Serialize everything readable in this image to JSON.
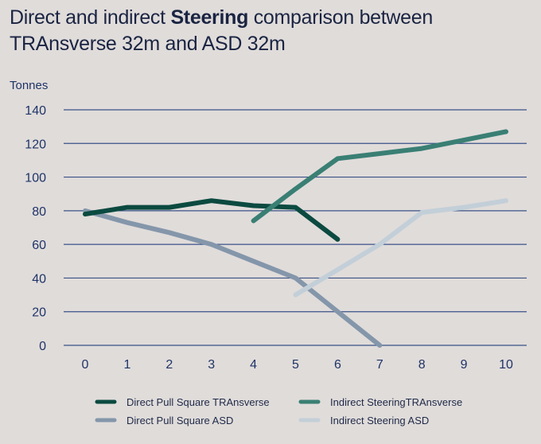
{
  "title": {
    "prefix": "Direct and indirect ",
    "bold": "Steering",
    "suffix": " comparison between TRAnsverse 32m and ASD 32m"
  },
  "chart_data": {
    "type": "line",
    "title": "Direct and indirect Steering comparison between TRAnsverse 32m and ASD 32m",
    "xlabel": "",
    "ylabel": "Tonnes",
    "x": [
      0,
      1,
      2,
      3,
      4,
      5,
      6,
      7,
      8,
      9,
      10
    ],
    "xticks": [
      "0",
      "1",
      "2",
      "3",
      "4",
      "5",
      "6",
      "7",
      "8",
      "9",
      "10"
    ],
    "yticks": [
      "0",
      "20",
      "40",
      "60",
      "80",
      "100",
      "120",
      "140"
    ],
    "xlim": [
      0,
      10
    ],
    "ylim": [
      0,
      140
    ],
    "grid": "horizontal",
    "legend_position": "bottom",
    "series": [
      {
        "name": "Direct Pull Square TRAnsverse",
        "color": "#0b4a40",
        "x": [
          0,
          1,
          2,
          3,
          4,
          5,
          6
        ],
        "values": [
          78,
          82,
          82,
          86,
          83,
          82,
          63
        ]
      },
      {
        "name": "Indirect SteeringTRAnsverse",
        "color": "#3a7f74",
        "x": [
          4,
          5,
          6,
          7,
          8,
          9,
          10
        ],
        "values": [
          74,
          93,
          111,
          114,
          117,
          122,
          127
        ]
      },
      {
        "name": "Direct Pull Square ASD",
        "color": "#8496aa",
        "x": [
          0,
          1,
          2,
          3,
          4,
          5,
          6,
          7
        ],
        "values": [
          80,
          73,
          67,
          60,
          50,
          40,
          20,
          0
        ]
      },
      {
        "name": "Indirect Steering ASD",
        "color": "#c3cfd8",
        "x": [
          5,
          6,
          7,
          8,
          9,
          10
        ],
        "values": [
          30,
          45,
          60,
          79,
          82,
          86
        ]
      }
    ]
  }
}
